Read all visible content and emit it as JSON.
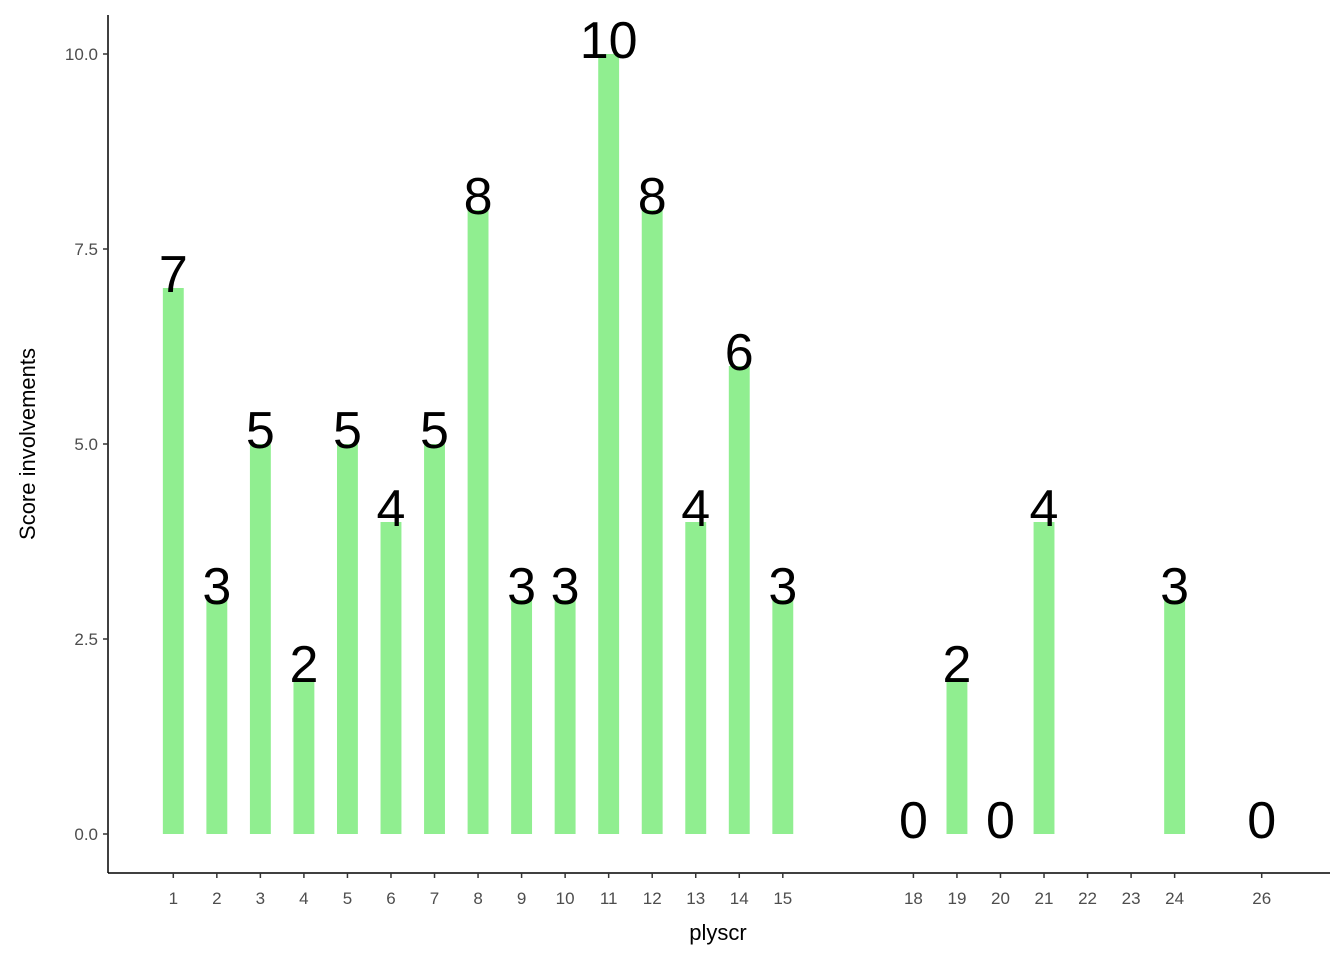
{
  "chart_data": {
    "type": "bar",
    "x_label": "plyscr",
    "y_label": "Score involvements",
    "x": [
      1,
      2,
      3,
      4,
      5,
      6,
      7,
      8,
      9,
      10,
      11,
      12,
      13,
      14,
      15,
      18,
      19,
      20,
      21,
      24,
      26
    ],
    "values": [
      7,
      3,
      5,
      2,
      5,
      4,
      5,
      8,
      3,
      3,
      10,
      8,
      4,
      6,
      3,
      0,
      2,
      0,
      4,
      3,
      0
    ],
    "color": "#90ee90",
    "xlim": [
      -0.5,
      27.5
    ],
    "xticks": [
      1,
      2,
      3,
      4,
      5,
      6,
      7,
      8,
      9,
      10,
      11,
      12,
      13,
      14,
      15,
      18,
      19,
      20,
      21,
      22,
      23,
      24,
      26
    ],
    "ylim": [
      -0.5,
      10.5
    ],
    "yticks": [
      {
        "value": 0,
        "label": "0.0"
      },
      {
        "value": 2.5,
        "label": "2.5"
      },
      {
        "value": 5,
        "label": "5.0"
      },
      {
        "value": 7.5,
        "label": "7.5"
      },
      {
        "value": 10,
        "label": "10.0"
      }
    ],
    "grid": false
  }
}
